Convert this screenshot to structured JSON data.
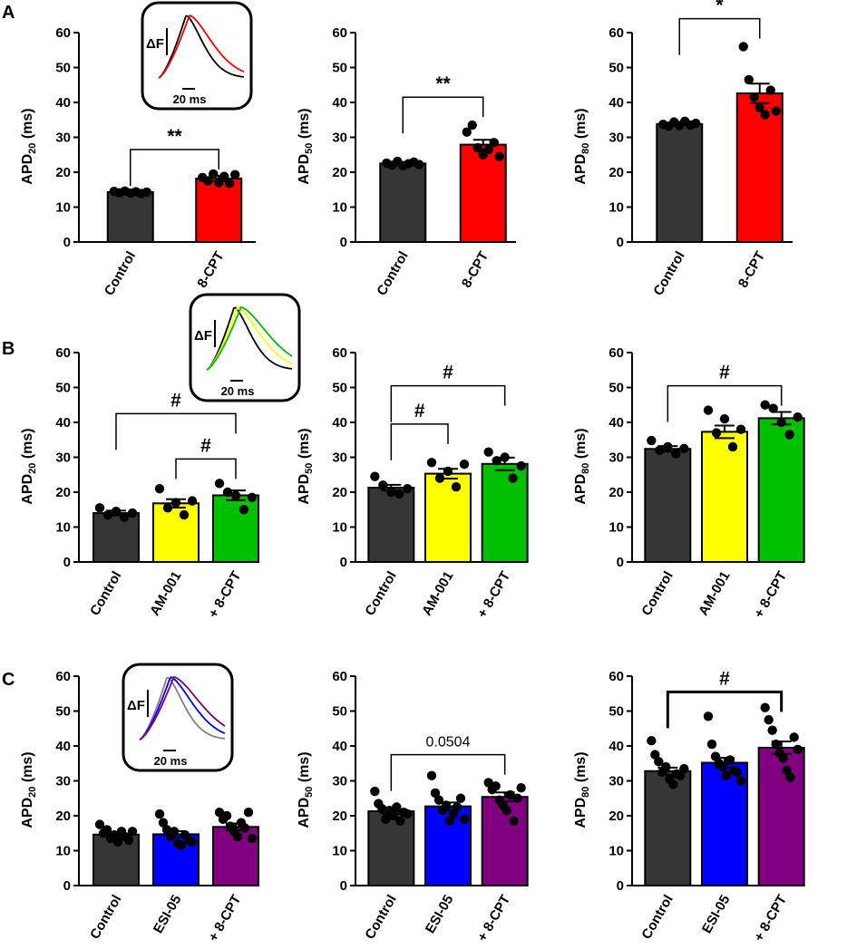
{
  "panel_labels": [
    "A",
    "B",
    "C"
  ],
  "colors": {
    "control": "#363636",
    "cpt": "#ff0000",
    "am001": "#ffff00",
    "am001_cpt": "#00c000",
    "esi05": "#0000ff",
    "esi05_cpt": "#800080"
  },
  "chart_data": [
    {
      "type": "bar",
      "panel": "A",
      "title": "",
      "ylabel": "APD20 (ms)",
      "ylabel_base": "APD",
      "ylabel_sub": "20",
      "ylabel_unit": " (ms)",
      "ylim": [
        0,
        60
      ],
      "yticks": [
        0,
        10,
        20,
        30,
        40,
        50,
        60
      ],
      "categories": [
        "Control",
        "8-CPT"
      ],
      "values": [
        14.3,
        18.2
      ],
      "errors": [
        0.4,
        0.8
      ],
      "colors": [
        "#363636",
        "#ff0000"
      ],
      "points": [
        [
          14.5,
          14.1,
          14.6,
          14.0,
          14.4,
          13.9,
          14.3
        ],
        [
          18.5,
          17.5,
          19.5,
          17.0,
          18.8,
          16.8,
          19.3
        ]
      ],
      "annotations": [
        {
          "from": 0,
          "to": 1,
          "text": "**",
          "level": 26.5
        }
      ],
      "inset": {
        "scale_text": "20 ms",
        "delta_text": "ΔF",
        "traces": [
          "#000000",
          "#ff0000"
        ]
      }
    },
    {
      "type": "bar",
      "panel": "A",
      "title": "",
      "ylabel": "APD50 (ms)",
      "ylabel_base": "APD",
      "ylabel_sub": "50",
      "ylabel_unit": " (ms)",
      "ylim": [
        0,
        60
      ],
      "yticks": [
        0,
        10,
        20,
        30,
        40,
        50,
        60
      ],
      "categories": [
        "Control",
        "8-CPT"
      ],
      "values": [
        22.5,
        27.9
      ],
      "errors": [
        0.4,
        1.4
      ],
      "colors": [
        "#363636",
        "#ff0000"
      ],
      "points": [
        [
          22.6,
          22.0,
          23.1,
          21.9,
          22.4,
          22.9,
          22.2
        ],
        [
          31.5,
          33.5,
          27.0,
          25.0,
          26.5,
          28.5,
          24.5
        ]
      ],
      "annotations": [
        {
          "from": 0,
          "to": 1,
          "text": "**",
          "level": 41.5
        }
      ]
    },
    {
      "type": "bar",
      "panel": "A",
      "title": "",
      "ylabel": "APD80 (ms)",
      "ylabel_base": "APD",
      "ylabel_sub": "80",
      "ylabel_unit": " (ms)",
      "ylim": [
        0,
        60
      ],
      "yticks": [
        0,
        10,
        20,
        30,
        40,
        50,
        60
      ],
      "categories": [
        "Control",
        "8-CPT"
      ],
      "values": [
        33.8,
        42.6
      ],
      "errors": [
        0.4,
        2.8
      ],
      "colors": [
        "#363636",
        "#ff0000"
      ],
      "points": [
        [
          33.7,
          33.2,
          34.4,
          33.4,
          34.6,
          33.5,
          34.0
        ],
        [
          56.0,
          46.5,
          41.5,
          38.5,
          36.5,
          43.5,
          37.5
        ]
      ],
      "annotations": [
        {
          "from": 0,
          "to": 1,
          "text": "*",
          "level": 64.0
        }
      ]
    },
    {
      "type": "bar",
      "panel": "B",
      "title": "",
      "ylabel": "APD20 (ms)",
      "ylabel_base": "APD",
      "ylabel_sub": "20",
      "ylabel_unit": " (ms)",
      "ylim": [
        0,
        60
      ],
      "yticks": [
        0,
        10,
        20,
        30,
        40,
        50,
        60
      ],
      "categories": [
        "Control",
        "AM-001",
        "+ 8-CPT"
      ],
      "values": [
        14.0,
        16.8,
        19.1
      ],
      "errors": [
        0.7,
        1.2,
        1.4
      ],
      "colors": [
        "#363636",
        "#ffff00",
        "#00c000"
      ],
      "points": [
        [
          15.5,
          13.5,
          14.5,
          12.8,
          14.0
        ],
        [
          21.0,
          15.5,
          17.0,
          13.5,
          17.5
        ],
        [
          22.5,
          20.0,
          19.0,
          15.0,
          18.5
        ]
      ],
      "annotations": [
        {
          "from": 0,
          "to": 2,
          "text": "#",
          "level": 42.5
        },
        {
          "from": 1,
          "to": 2,
          "text": "#",
          "level": 29.5
        }
      ],
      "inset": {
        "scale_text": "20 ms",
        "delta_text": "ΔF",
        "traces": [
          "#000000",
          "#ffff00",
          "#00c000"
        ]
      }
    },
    {
      "type": "bar",
      "panel": "B",
      "title": "",
      "ylabel": "APD50 (ms)",
      "ylabel_base": "APD",
      "ylabel_sub": "50",
      "ylabel_unit": " (ms)",
      "ylim": [
        0,
        60
      ],
      "yticks": [
        0,
        10,
        20,
        30,
        40,
        50,
        60
      ],
      "categories": [
        "Control",
        "AM-001",
        "+ 8-CPT"
      ],
      "values": [
        21.3,
        25.3,
        28.1
      ],
      "errors": [
        0.8,
        1.4,
        1.8
      ],
      "colors": [
        "#363636",
        "#ffff00",
        "#00c000"
      ],
      "points": [
        [
          24.5,
          22.0,
          20.0,
          19.5,
          21.0
        ],
        [
          28.5,
          24.0,
          26.0,
          21.5,
          28.0
        ],
        [
          31.5,
          29.0,
          30.0,
          24.0,
          27.5
        ]
      ],
      "annotations": [
        {
          "from": 0,
          "to": 1,
          "text": "#",
          "level": 39.5
        },
        {
          "from": 0,
          "to": 2,
          "text": "#",
          "level": 50.5
        }
      ]
    },
    {
      "type": "bar",
      "panel": "B",
      "title": "",
      "ylabel": "APD80 (ms)",
      "ylabel_base": "APD",
      "ylabel_sub": "80",
      "ylabel_unit": " (ms)",
      "ylim": [
        0,
        60
      ],
      "yticks": [
        0,
        10,
        20,
        30,
        40,
        50,
        60
      ],
      "categories": [
        "Control",
        "AM-001",
        "+ 8-CPT"
      ],
      "values": [
        32.4,
        37.3,
        41.2
      ],
      "errors": [
        0.8,
        1.8,
        1.8
      ],
      "colors": [
        "#363636",
        "#ffff00",
        "#00c000"
      ],
      "points": [
        [
          34.8,
          32.0,
          33.0,
          31.0,
          32.5
        ],
        [
          43.5,
          37.0,
          41.0,
          33.0,
          38.0
        ],
        [
          45.0,
          44.0,
          40.0,
          36.5,
          41.5
        ]
      ],
      "annotations": [
        {
          "from": 0,
          "to": 2,
          "text": "#",
          "level": 50.5
        }
      ]
    },
    {
      "type": "bar",
      "panel": "C",
      "title": "",
      "ylabel": "APD20 (ms)",
      "ylabel_base": "APD",
      "ylabel_sub": "20",
      "ylabel_unit": " (ms)",
      "ylim": [
        0,
        60
      ],
      "yticks": [
        0,
        10,
        20,
        30,
        40,
        50,
        60
      ],
      "categories": [
        "Control",
        "ESI-05",
        "+ 8-CPT"
      ],
      "values": [
        14.6,
        14.7,
        16.8
      ],
      "errors": [
        0.5,
        0.9,
        1.0
      ],
      "colors": [
        "#363636",
        "#0000ff",
        "#800080"
      ],
      "points": [
        [
          17.5,
          15.0,
          16.0,
          13.5,
          14.5,
          12.5,
          15.5,
          14.0,
          13.0,
          15.5
        ],
        [
          20.5,
          18.0,
          16.0,
          14.0,
          15.5,
          12.0,
          11.5,
          14.5,
          13.0,
          12.5
        ],
        [
          21.0,
          19.0,
          20.0,
          17.0,
          15.5,
          14.0,
          18.0,
          16.5,
          21.0,
          13.5
        ]
      ],
      "annotations": [],
      "inset": {
        "scale_text": "20 ms",
        "delta_text": "ΔF",
        "traces": [
          "#808080",
          "#0000ff",
          "#800080"
        ]
      }
    },
    {
      "type": "bar",
      "panel": "C",
      "title": "",
      "ylabel": "APD50 (ms)",
      "ylabel_base": "APD",
      "ylabel_sub": "50",
      "ylabel_unit": " (ms)",
      "ylim": [
        0,
        60
      ],
      "yticks": [
        0,
        10,
        20,
        30,
        40,
        50,
        60
      ],
      "categories": [
        "Control",
        "ESI-05",
        "+ 8-CPT"
      ],
      "values": [
        21.3,
        22.7,
        25.4
      ],
      "errors": [
        0.7,
        1.1,
        1.3
      ],
      "colors": [
        "#363636",
        "#0000ff",
        "#800080"
      ],
      "points": [
        [
          27.0,
          23.5,
          22.0,
          19.0,
          21.5,
          20.0,
          22.5,
          18.5,
          21.0,
          20.5
        ],
        [
          31.5,
          26.5,
          24.5,
          21.5,
          23.0,
          18.5,
          20.5,
          22.5,
          25.0,
          19.0
        ],
        [
          29.5,
          27.5,
          28.5,
          24.5,
          23.0,
          21.5,
          26.0,
          18.5,
          25.0,
          28.0
        ]
      ],
      "annotations": [
        {
          "from": 0,
          "to": 2,
          "text": "0.0504",
          "level": 37.5,
          "plain": true
        }
      ]
    },
    {
      "type": "bar",
      "panel": "C",
      "title": "",
      "ylabel": "APD80 (ms)",
      "ylabel_base": "APD",
      "ylabel_sub": "80",
      "ylabel_unit": " (ms)",
      "ylim": [
        0,
        60
      ],
      "yticks": [
        0,
        10,
        20,
        30,
        40,
        50,
        60
      ],
      "categories": [
        "Control",
        "ESI-05",
        "+ 8-CPT"
      ],
      "values": [
        32.8,
        35.2,
        39.5
      ],
      "errors": [
        1.0,
        1.4,
        1.8
      ],
      "colors": [
        "#363636",
        "#0000ff",
        "#800080"
      ],
      "points": [
        [
          41.5,
          37.5,
          35.5,
          32.5,
          34.0,
          30.5,
          29.0,
          32.0,
          31.5,
          33.5
        ],
        [
          48.5,
          40.5,
          37.0,
          35.0,
          34.0,
          31.5,
          36.0,
          33.0,
          32.5,
          30.0
        ],
        [
          51.0,
          47.5,
          44.5,
          40.5,
          38.0,
          36.5,
          33.0,
          31.0,
          42.5,
          39.0
        ]
      ],
      "annotations": [
        {
          "from": 0,
          "to": 2,
          "text": "#",
          "level": 55.5
        }
      ]
    }
  ]
}
